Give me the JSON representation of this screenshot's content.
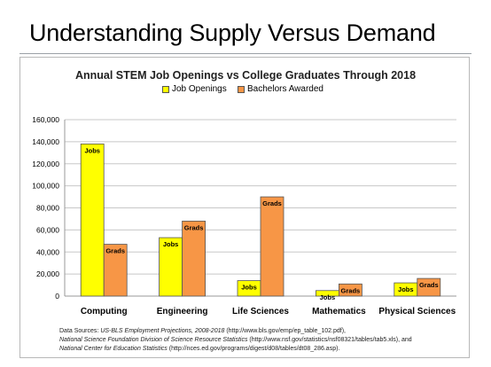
{
  "slide": {
    "title": "Understanding Supply Versus Demand"
  },
  "chart_data": {
    "type": "bar",
    "title": "Annual STEM Job Openings vs College Graduates Through 2018",
    "categories": [
      "Computing",
      "Engineering",
      "Life Sciences",
      "Mathematics",
      "Physical Sciences"
    ],
    "series": [
      {
        "name": "Job Openings",
        "color": "#ffff00",
        "values": [
          138000,
          53000,
          14000,
          5000,
          12000
        ],
        "bar_label": "Jobs"
      },
      {
        "name": "Bachelors Awarded",
        "color": "#f79646",
        "values": [
          47000,
          68000,
          90000,
          11000,
          16000
        ],
        "bar_label": "Grads"
      }
    ],
    "ylim": [
      0,
      160000
    ],
    "yticks": [
      "0",
      "20,000",
      "40,000",
      "60,000",
      "80,000",
      "100,000",
      "120,000",
      "140,000",
      "160,000"
    ],
    "grid": true,
    "legend_position": "top"
  },
  "sources": {
    "line1_prefix": "Data Sources: ",
    "line1_italic": "US-BLS Employment Projections, 2008-2018",
    "line1_rest": " (http://www.bls.gov/emp/ep_table_102.pdf),",
    "line2_italic": "National Science Foundation Division of Science Resource Statistics",
    "line2_rest": " (http://www.nsf.gov/statistics/nsf08321/tables/tab5.xls), and",
    "line3_italic": "National Center for Education Statistics",
    "line3_rest": " (http://nces.ed.gov/programs/digest/d08/tables/dt08_286.asp)."
  }
}
